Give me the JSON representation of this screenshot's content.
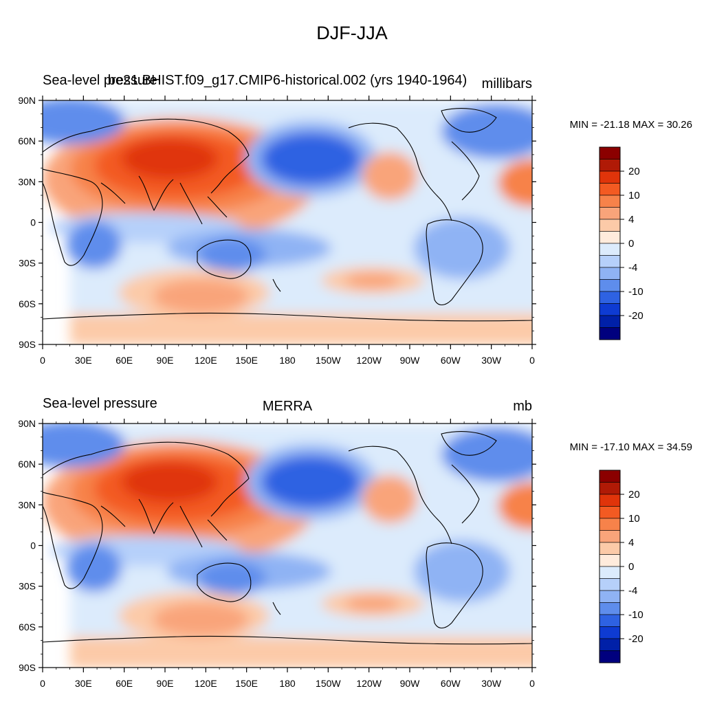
{
  "main_title": "DJF-JJA",
  "panels": [
    {
      "left_title": "Sea-level pressure",
      "center_title": "be21.BHIST.f09_g17.CMIP6-historical.002 (yrs 1940-1964)",
      "right_title": "millibars",
      "min_max": "MIN = -21.18 MAX =  30.26"
    },
    {
      "left_title": "Sea-level pressure",
      "center_title": "MERRA",
      "right_title": "mb",
      "min_max": "MIN = -17.10 MAX =  34.59"
    }
  ],
  "lat_ticks": [
    "90N",
    "60N",
    "30N",
    "0",
    "30S",
    "60S",
    "90S"
  ],
  "lon_ticks": [
    "0",
    "30E",
    "60E",
    "90E",
    "120E",
    "150E",
    "180",
    "150W",
    "120W",
    "90W",
    "60W",
    "30W",
    "0"
  ],
  "colorbar": {
    "colors": [
      "#8B0000",
      "#B01A06",
      "#E0340A",
      "#F35A22",
      "#F7824A",
      "#F9A47A",
      "#FCCAA8",
      "#FFEBDC",
      "#DCEBFC",
      "#B6D0FA",
      "#8FB3F4",
      "#5E8DEC",
      "#2E62E2",
      "#0E3BD2",
      "#0020A8",
      "#00007E"
    ],
    "labels": [
      "20",
      "10",
      "4",
      "0",
      "-4",
      "-10",
      "-20"
    ]
  },
  "colors": {
    "ocean_base": "#DCEBFC",
    "coastline": "#000000"
  }
}
